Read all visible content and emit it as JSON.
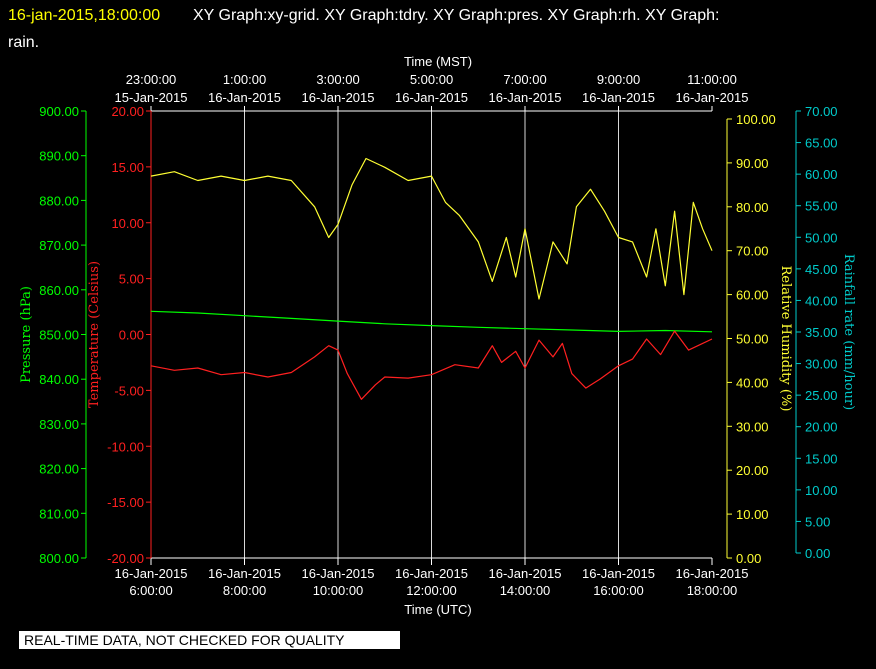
{
  "header": {
    "timestamp": "16-jan-2015,18:00:00",
    "graphs": "XY Graph:xy-grid.  XY Graph:tdry.  XY Graph:pres.  XY Graph:rh.  XY Graph:",
    "graphs_cont": "rain."
  },
  "footer_note": "REAL-TIME DATA, NOT CHECKED FOR QUALITY",
  "colors": {
    "background": "#000000",
    "pressure": "#00ff00",
    "temperature": "#ff2020",
    "humidity": "#ffff33",
    "rain": "#00cccc",
    "grid": "#ffffff",
    "text": "#ffffff",
    "header_timestamp": "#ffff00"
  },
  "chart_data": {
    "type": "line",
    "xlabel_bottom": "Time (UTC)",
    "xlabel_top": "Time (MST)",
    "xlim_hours_utc": [
      6.0,
      18.0
    ],
    "grid": true,
    "bottom_ticks": [
      {
        "date": "16-Jan-2015",
        "time": "6:00:00",
        "hour": 6
      },
      {
        "date": "16-Jan-2015",
        "time": "8:00:00",
        "hour": 8
      },
      {
        "date": "16-Jan-2015",
        "time": "10:00:00",
        "hour": 10
      },
      {
        "date": "16-Jan-2015",
        "time": "12:00:00",
        "hour": 12
      },
      {
        "date": "16-Jan-2015",
        "time": "14:00:00",
        "hour": 14
      },
      {
        "date": "16-Jan-2015",
        "time": "16:00:00",
        "hour": 16
      },
      {
        "date": "16-Jan-2015",
        "time": "18:00:00",
        "hour": 18
      }
    ],
    "top_ticks": [
      {
        "time": "23:00:00",
        "date": "15-Jan-2015",
        "hour": 6
      },
      {
        "time": "1:00:00",
        "date": "16-Jan-2015",
        "hour": 8
      },
      {
        "time": "3:00:00",
        "date": "16-Jan-2015",
        "hour": 10
      },
      {
        "time": "5:00:00",
        "date": "16-Jan-2015",
        "hour": 12
      },
      {
        "time": "7:00:00",
        "date": "16-Jan-2015",
        "hour": 14
      },
      {
        "time": "9:00:00",
        "date": "16-Jan-2015",
        "hour": 16
      },
      {
        "time": "11:00:00",
        "date": "16-Jan-2015",
        "hour": 18
      }
    ],
    "axes": {
      "pressure": {
        "label": "Pressure (hPa)",
        "ylim": [
          800,
          900
        ],
        "ticks": [
          "900.00",
          "890.00",
          "880.00",
          "870.00",
          "860.00",
          "850.00",
          "840.00",
          "830.00",
          "820.00",
          "810.00",
          "800.00"
        ]
      },
      "temperature": {
        "label": "Temperature (Celsius)",
        "ylim": [
          -20,
          20
        ],
        "ticks": [
          "20.00",
          "15.00",
          "10.00",
          "5.00",
          "0.00",
          "-5.00",
          "-10.00",
          "-15.00",
          "-20.00"
        ]
      },
      "humidity": {
        "label": "Relative Humidity (%)",
        "ylim": [
          0,
          100
        ],
        "ticks": [
          "100.00",
          "90.00",
          "80.00",
          "70.00",
          "60.00",
          "50.00",
          "40.00",
          "30.00",
          "20.00",
          "10.00",
          "0.00"
        ]
      },
      "rain": {
        "label": "Rainfall rate (mm/hour)",
        "ylim": [
          0,
          70
        ],
        "ticks": [
          "70.00",
          "65.00",
          "60.00",
          "55.00",
          "50.00",
          "45.00",
          "40.00",
          "35.00",
          "30.00",
          "25.00",
          "20.00",
          "15.00",
          "10.00",
          "5.00",
          "0.00"
        ]
      }
    },
    "series": [
      {
        "key": "pressure",
        "axis": "pressure",
        "x": [
          6.0,
          7.0,
          8.0,
          9.0,
          10.0,
          11.0,
          12.0,
          13.0,
          14.0,
          15.0,
          16.0,
          17.0,
          18.0
        ],
        "y": [
          855.2,
          854.8,
          854.2,
          853.6,
          853.0,
          852.4,
          852.0,
          851.6,
          851.3,
          851.0,
          850.7,
          850.9,
          850.6
        ]
      },
      {
        "key": "temperature",
        "axis": "temperature",
        "x": [
          6.0,
          6.5,
          7.0,
          7.5,
          8.0,
          8.5,
          9.0,
          9.5,
          9.8,
          10.0,
          10.2,
          10.5,
          10.8,
          11.0,
          11.5,
          12.0,
          12.5,
          13.0,
          13.3,
          13.5,
          13.8,
          14.0,
          14.3,
          14.6,
          14.8,
          15.0,
          15.3,
          15.6,
          16.0,
          16.3,
          16.6,
          16.9,
          17.2,
          17.5,
          17.8,
          18.0
        ],
        "y": [
          -2.8,
          -3.2,
          -3.0,
          -3.6,
          -3.4,
          -3.8,
          -3.4,
          -2.0,
          -1.0,
          -1.4,
          -3.5,
          -5.8,
          -4.5,
          -3.8,
          -3.9,
          -3.6,
          -2.7,
          -3.0,
          -1.0,
          -2.5,
          -1.5,
          -3.0,
          -0.5,
          -2.0,
          -0.8,
          -3.5,
          -4.8,
          -4.0,
          -2.8,
          -2.2,
          -0.4,
          -1.8,
          0.3,
          -1.4,
          -0.8,
          -0.4
        ]
      },
      {
        "key": "humidity",
        "axis": "humidity",
        "x": [
          6.0,
          6.5,
          7.0,
          7.5,
          8.0,
          8.5,
          9.0,
          9.5,
          9.8,
          10.0,
          10.3,
          10.6,
          11.0,
          11.5,
          12.0,
          12.3,
          12.6,
          13.0,
          13.3,
          13.6,
          13.8,
          14.0,
          14.3,
          14.6,
          14.9,
          15.1,
          15.4,
          15.7,
          16.0,
          16.3,
          16.6,
          16.8,
          17.0,
          17.2,
          17.4,
          17.6,
          17.8,
          18.0
        ],
        "y": [
          87,
          88,
          86,
          87,
          86,
          87,
          86,
          80,
          73,
          76,
          85,
          91,
          89,
          86,
          87,
          81,
          78,
          72,
          63,
          73,
          64,
          75,
          59,
          72,
          67,
          80,
          84,
          79,
          73,
          72,
          64,
          75,
          62,
          79,
          60,
          81,
          75,
          70
        ]
      },
      {
        "key": "rain",
        "axis": "rain",
        "x": [],
        "y": []
      }
    ]
  }
}
